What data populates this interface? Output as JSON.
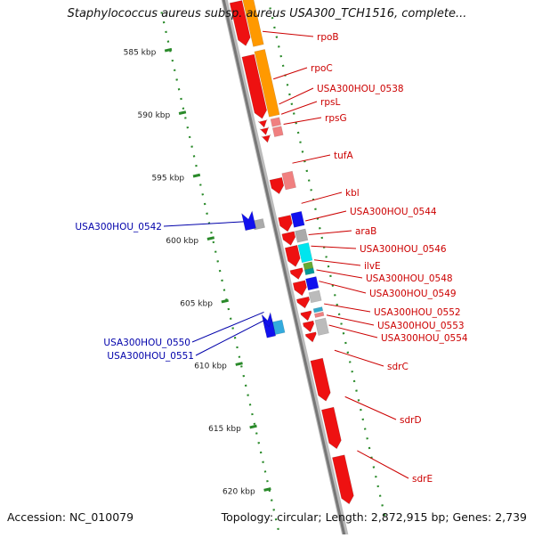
{
  "title": "Staphylococcus aureus subsp. aureus USA300_TCH1516, complete...",
  "footer": {
    "accession": "Accession: NC_010079",
    "summary": "Topology: circular; Length: 2,872,915 bp; Genes: 2,739"
  },
  "ticks": [
    {
      "label": "585 kbp",
      "kb": 585
    },
    {
      "label": "590 kbp",
      "kb": 590
    },
    {
      "label": "595 kbp",
      "kb": 595
    },
    {
      "label": "600 kbp",
      "kb": 600
    },
    {
      "label": "605 kbp",
      "kb": 605
    },
    {
      "label": "610 kbp",
      "kb": 610
    },
    {
      "label": "615 kbp",
      "kb": 615
    },
    {
      "label": "620 kbp",
      "kb": 620
    }
  ],
  "genes_right": [
    {
      "name": "rpoB",
      "kb": 585.2,
      "color": "#cc0000"
    },
    {
      "name": "rpoC",
      "kb": 589.0,
      "color": "#cc0000"
    },
    {
      "name": "USA300HOU_0538",
      "kb": 591.0,
      "color": "#cc0000"
    },
    {
      "name": "rpsL",
      "kb": 591.8,
      "color": "#cc0000"
    },
    {
      "name": "rpsG",
      "kb": 592.6,
      "color": "#cc0000"
    },
    {
      "name": "tufA",
      "kb": 595.7,
      "color": "#cc0000"
    },
    {
      "name": "kbl",
      "kb": 598.9,
      "color": "#cc0000"
    },
    {
      "name": "USA300HOU_0544",
      "kb": 600.3,
      "color": "#cc0000"
    },
    {
      "name": "araB",
      "kb": 601.4,
      "color": "#cc0000"
    },
    {
      "name": "USA300HOU_0546",
      "kb": 602.3,
      "color": "#cc0000"
    },
    {
      "name": "ilvE",
      "kb": 603.4,
      "color": "#cc0000"
    },
    {
      "name": "USA300HOU_0548",
      "kb": 604.2,
      "color": "#cc0000"
    },
    {
      "name": "USA300HOU_0549",
      "kb": 605.1,
      "color": "#cc0000"
    },
    {
      "name": "USA300HOU_0552",
      "kb": 606.9,
      "color": "#cc0000"
    },
    {
      "name": "USA300HOU_0553",
      "kb": 607.8,
      "color": "#cc0000"
    },
    {
      "name": "USA300HOU_0554",
      "kb": 608.6,
      "color": "#cc0000"
    },
    {
      "name": "sdrC",
      "kb": 610.6,
      "color": "#cc0000"
    },
    {
      "name": "sdrD",
      "kb": 614.3,
      "color": "#cc0000"
    },
    {
      "name": "sdrE",
      "kb": 618.6,
      "color": "#cc0000"
    }
  ],
  "genes_left": [
    {
      "name": "USA300HOU_0542",
      "kb": 599.3,
      "color": "#0000aa"
    },
    {
      "name": "USA300HOU_0550",
      "kb": 606.5,
      "color": "#0000aa"
    },
    {
      "name": "USA300HOU_0551",
      "kb": 607.1,
      "color": "#0000aa"
    }
  ]
}
